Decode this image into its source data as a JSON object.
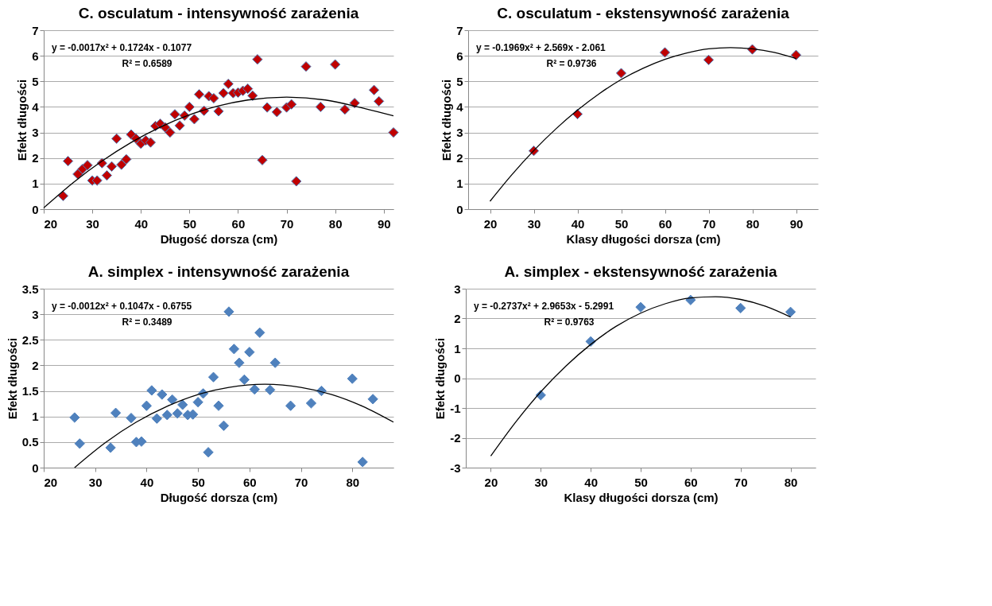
{
  "chart_data": [
    {
      "type": "scatter",
      "title": "C. osculatum - intensywność zarażenia",
      "xlabel": "Długość dorsza (cm)",
      "ylabel": "Efekt długości",
      "xlim": [
        20,
        92
      ],
      "xticks": [
        20,
        30,
        40,
        50,
        60,
        70,
        80,
        90
      ],
      "ylim": [
        0,
        7
      ],
      "yticks": [
        0,
        1,
        2,
        3,
        4,
        5,
        6,
        7
      ],
      "grid": "y",
      "annotations": [
        "y = -0.0017x² + 0.1724x - 0.1077",
        "R² = 0.6589"
      ],
      "series": [
        {
          "marker": "diamond",
          "color": "#c00000",
          "x": [
            24,
            25,
            27,
            28,
            29,
            30,
            31,
            32,
            33,
            34,
            35,
            36,
            37,
            38,
            39,
            40,
            41,
            42,
            43,
            44,
            45,
            46,
            47,
            48,
            49,
            50,
            51,
            52,
            53,
            54,
            55,
            56,
            57,
            58,
            59,
            60,
            61,
            62,
            63,
            64,
            65,
            66,
            68,
            70,
            71,
            72,
            74,
            77,
            80,
            82,
            84,
            88,
            89,
            92
          ],
          "values": [
            0.52,
            1.88,
            1.37,
            1.57,
            1.72,
            1.12,
            1.12,
            1.8,
            1.32,
            1.67,
            2.76,
            1.74,
            1.95,
            2.92,
            2.76,
            2.56,
            2.69,
            2.61,
            3.25,
            3.34,
            3.2,
            3.0,
            3.71,
            3.27,
            3.66,
            4.0,
            3.52,
            4.49,
            3.85,
            4.42,
            4.34,
            3.83,
            4.54,
            4.9,
            4.54,
            4.56,
            4.63,
            4.71,
            4.44,
            5.86,
            1.92,
            3.98,
            3.8,
            3.98,
            4.1,
            1.09,
            5.58,
            4.0,
            5.66,
            3.9,
            4.15,
            4.66,
            4.22,
            3.0
          ]
        },
        {
          "type": "line",
          "marker": "none",
          "color": "#000000",
          "x": [
            20,
            26,
            32,
            38,
            44,
            50,
            56,
            62,
            70,
            78,
            86,
            92
          ],
          "values": [
            0.05,
            1.03,
            1.88,
            2.61,
            3.21,
            3.69,
            4.04,
            4.27,
            4.38,
            4.27,
            3.94,
            3.65
          ]
        }
      ]
    },
    {
      "type": "scatter",
      "title": "C. osculatum - ekstensywność zarażenia",
      "xlabel": "Klasy długości dorsza (cm)",
      "ylabel": "Efekt długości",
      "xlim": [
        15,
        95
      ],
      "xticks": [
        20,
        30,
        40,
        50,
        60,
        70,
        80,
        90
      ],
      "ylim": [
        0,
        7
      ],
      "yticks": [
        0,
        1,
        2,
        3,
        4,
        5,
        6,
        7
      ],
      "grid": "y",
      "annotations": [
        "y = -0.1969x² + 2.569x - 2.061",
        "R² = 0.9736"
      ],
      "series": [
        {
          "marker": "diamond",
          "color": "#c00000",
          "x": [
            30,
            40,
            50,
            60,
            70,
            80,
            90
          ],
          "values": [
            2.28,
            3.72,
            5.32,
            6.13,
            5.84,
            6.25,
            6.03
          ]
        },
        {
          "type": "line",
          "marker": "none",
          "color": "#000000",
          "x": [
            20,
            25,
            30,
            35,
            40,
            45,
            50,
            55,
            60,
            65,
            70,
            75,
            80,
            85,
            90
          ],
          "values": [
            0.31,
            1.35,
            2.29,
            3.13,
            3.87,
            4.52,
            5.07,
            5.51,
            5.86,
            6.11,
            6.27,
            6.32,
            6.27,
            6.13,
            5.89
          ]
        }
      ]
    },
    {
      "type": "scatter",
      "title": "A. simplex - intensywność zarażenia",
      "xlabel": "Długość dorsza (cm)",
      "ylabel": "Efekt długości",
      "xlim": [
        20,
        88
      ],
      "xticks": [
        20,
        30,
        40,
        50,
        60,
        70,
        80
      ],
      "ylim": [
        0,
        3.5
      ],
      "yticks": [
        0,
        0.5,
        1,
        1.5,
        2,
        2.5,
        3,
        3.5
      ],
      "grid": "y",
      "annotations": [
        "y = -0.0012x² + 0.1047x - 0.6755",
        "R² = 0.3489"
      ],
      "series": [
        {
          "marker": "diamond",
          "color": "#4f81bd",
          "x": [
            26,
            27,
            33,
            34,
            37,
            38,
            39,
            40,
            41,
            42,
            43,
            44,
            45,
            46,
            47,
            48,
            49,
            50,
            51,
            52,
            53,
            54,
            55,
            56,
            57,
            58,
            59,
            60,
            61,
            62,
            64,
            65,
            68,
            72,
            74,
            80,
            82,
            84
          ],
          "values": [
            0.98,
            0.47,
            0.39,
            1.07,
            0.97,
            0.5,
            0.51,
            1.21,
            1.51,
            0.96,
            1.43,
            1.03,
            1.33,
            1.06,
            1.23,
            1.03,
            1.04,
            1.28,
            1.45,
            0.3,
            1.77,
            1.21,
            0.82,
            3.05,
            2.32,
            2.05,
            1.72,
            2.26,
            1.53,
            2.64,
            1.52,
            2.05,
            1.21,
            1.26,
            1.5,
            1.74,
            0.11,
            1.34
          ]
        },
        {
          "type": "line",
          "marker": "none",
          "color": "#000000",
          "x": [
            26,
            32,
            38,
            44,
            50,
            56,
            63,
            70,
            76,
            82,
            88
          ],
          "values": [
            0.0,
            0.49,
            0.89,
            1.2,
            1.43,
            1.57,
            1.63,
            1.57,
            1.43,
            1.2,
            0.89
          ]
        }
      ]
    },
    {
      "type": "scatter",
      "title": "A. simplex - ekstensywność zarażenia",
      "xlabel": "Klasy długości dorsza (cm)",
      "ylabel": "Efekt długości",
      "xlim": [
        15,
        85
      ],
      "xticks": [
        20,
        30,
        40,
        50,
        60,
        70,
        80
      ],
      "ylim": [
        -3,
        3
      ],
      "yticks": [
        -3,
        -2,
        -1,
        0,
        1,
        2,
        3
      ],
      "grid": "y",
      "annotations": [
        "y = -0.2737x² + 2.9653x - 5.2991",
        "R² = 0.9763"
      ],
      "series": [
        {
          "marker": "diamond",
          "color": "#4f81bd",
          "x": [
            30,
            40,
            50,
            60,
            70,
            80
          ],
          "values": [
            -0.57,
            1.23,
            2.38,
            2.62,
            2.35,
            2.22
          ]
        },
        {
          "type": "line",
          "marker": "none",
          "color": "#000000",
          "x": [
            20,
            25,
            30,
            35,
            40,
            45,
            50,
            55,
            60,
            65,
            70,
            75,
            80
          ],
          "values": [
            -2.61,
            -1.47,
            -0.46,
            0.4,
            1.13,
            1.73,
            2.18,
            2.5,
            2.69,
            2.73,
            2.64,
            2.41,
            2.05
          ]
        }
      ]
    }
  ]
}
